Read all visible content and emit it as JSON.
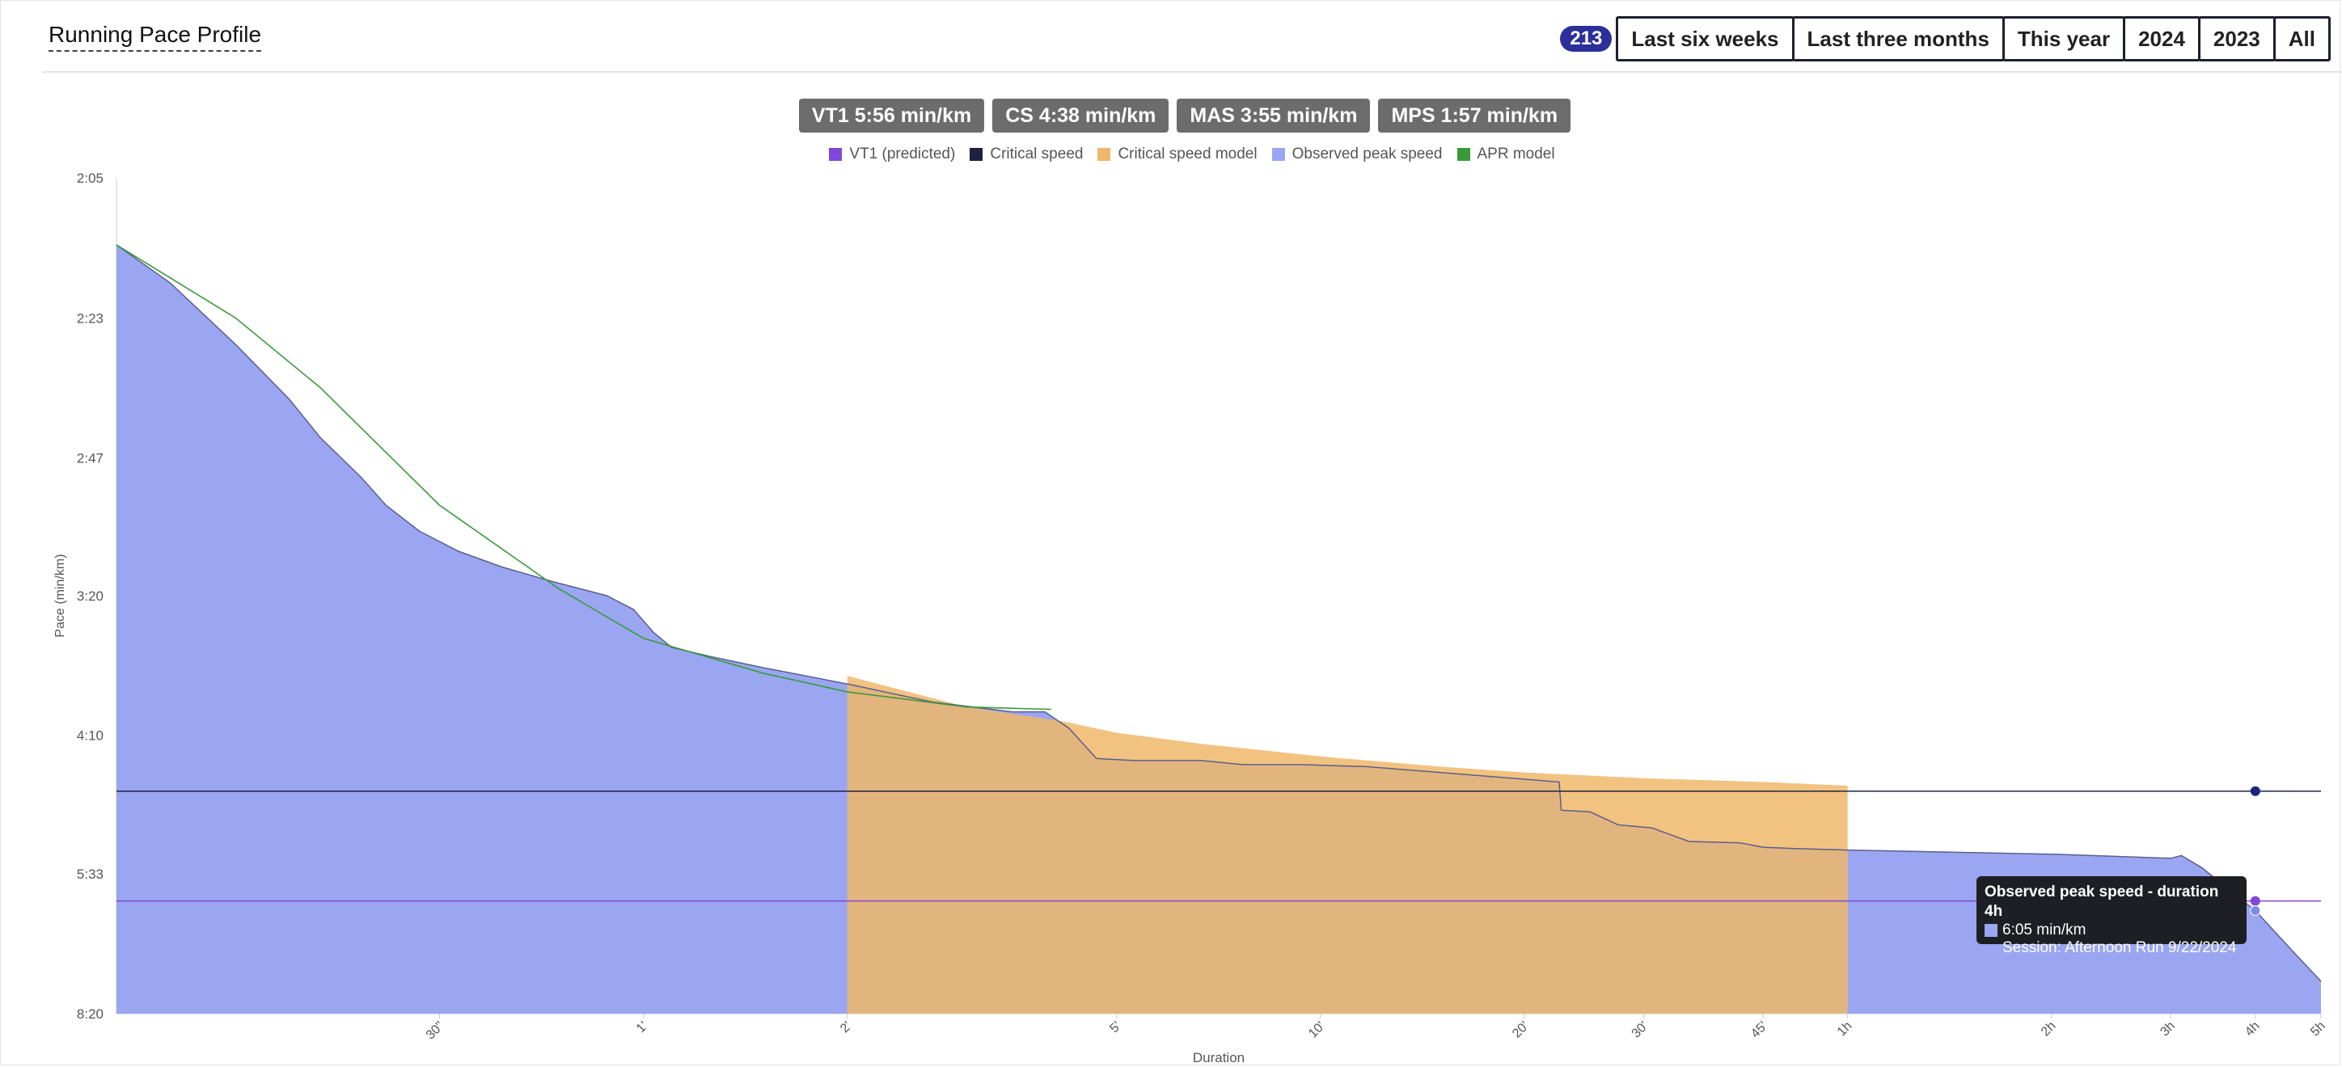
{
  "header": {
    "title": "Running Pace Profile",
    "count_badge": "213",
    "ranges": [
      "Last six weeks",
      "Last three months",
      "This year",
      "2024",
      "2023",
      "All"
    ]
  },
  "metrics": [
    {
      "label": "VT1 5:56 min/km"
    },
    {
      "label": "CS 4:38 min/km"
    },
    {
      "label": "MAS 3:55 min/km"
    },
    {
      "label": "MPS 1:57 min/km"
    }
  ],
  "colors": {
    "vt1": "#7f48d8",
    "critical_speed": "#1f2140",
    "cs_model": "#f0b76a",
    "observed": "#9aa6f2",
    "apr": "#3a9a3a"
  },
  "chart_data": {
    "type": "area",
    "xlabel": "Duration",
    "ylabel": "Pace (min/km)",
    "x_scale": "log",
    "y_scale": "reciprocal (speed)",
    "x_ticks": [
      {
        "label": "30\"",
        "seconds": 30
      },
      {
        "label": "1'",
        "seconds": 60
      },
      {
        "label": "2'",
        "seconds": 120
      },
      {
        "label": "5'",
        "seconds": 300
      },
      {
        "label": "10'",
        "seconds": 600
      },
      {
        "label": "20'",
        "seconds": 1200
      },
      {
        "label": "30'",
        "seconds": 1800
      },
      {
        "label": "45'",
        "seconds": 2700
      },
      {
        "label": "1h",
        "seconds": 3600
      },
      {
        "label": "2h",
        "seconds": 7200
      },
      {
        "label": "3h",
        "seconds": 10800
      },
      {
        "label": "4h",
        "seconds": 14400
      },
      {
        "label": "5h",
        "seconds": 18000
      }
    ],
    "y_ticks": [
      "2:05",
      "2:23",
      "2:47",
      "3:20",
      "4:10",
      "5:33",
      "8:20"
    ],
    "y_range_speed_kmh": [
      7.2,
      28.8
    ],
    "x_range_seconds": [
      10,
      18000
    ],
    "legend": [
      "VT1 (predicted)",
      "Critical speed",
      "Critical speed model",
      "Observed peak speed",
      "APR model"
    ],
    "series": [
      {
        "name": "Observed peak speed",
        "points": [
          [
            10,
            "2:13"
          ],
          [
            12,
            "2:18"
          ],
          [
            15,
            "2:27"
          ],
          [
            18,
            "2:36"
          ],
          [
            20,
            "2:43"
          ],
          [
            23,
            "2:51"
          ],
          [
            25,
            "2:57"
          ],
          [
            28,
            "3:03"
          ],
          [
            32,
            "3:08"
          ],
          [
            37,
            "3:12"
          ],
          [
            44,
            "3:16"
          ],
          [
            53,
            "3:20"
          ],
          [
            58,
            "3:24"
          ],
          [
            62,
            "3:31"
          ],
          [
            66,
            "3:36"
          ],
          [
            75,
            "3:39"
          ],
          [
            90,
            "3:43"
          ],
          [
            120,
            "3:49"
          ],
          [
            160,
            "3:56"
          ],
          [
            210,
            "4:00"
          ],
          [
            235,
            "4:00"
          ],
          [
            255,
            "4:07"
          ],
          [
            280,
            "4:21"
          ],
          [
            320,
            "4:22"
          ],
          [
            400,
            "4:22"
          ],
          [
            460,
            "4:24"
          ],
          [
            560,
            "4:24"
          ],
          [
            700,
            "4:25"
          ],
          [
            900,
            "4:28"
          ],
          [
            1150,
            "4:31"
          ],
          [
            1350,
            "4:33"
          ],
          [
            1360,
            "4:49"
          ],
          [
            1500,
            "4:50"
          ],
          [
            1650,
            "4:58"
          ],
          [
            1850,
            "5:00"
          ],
          [
            2100,
            "5:09"
          ],
          [
            2500,
            "5:10"
          ],
          [
            2700,
            "5:13"
          ],
          [
            3000,
            "5:14"
          ],
          [
            3600,
            "5:15"
          ],
          [
            7200,
            "5:18"
          ],
          [
            10800,
            "5:21"
          ],
          [
            11200,
            "5:19"
          ],
          [
            12000,
            "5:28"
          ],
          [
            14400,
            "6:05"
          ],
          [
            16500,
            "6:52"
          ],
          [
            18000,
            "7:28"
          ]
        ]
      },
      {
        "name": "Critical speed model",
        "points": [
          [
            120,
            "3:46"
          ],
          [
            180,
            "3:58"
          ],
          [
            250,
            "4:04"
          ],
          [
            300,
            "4:09"
          ],
          [
            400,
            "4:14"
          ],
          [
            600,
            "4:20"
          ],
          [
            900,
            "4:25"
          ],
          [
            1200,
            "4:28"
          ],
          [
            1800,
            "4:31"
          ],
          [
            2700,
            "4:33"
          ],
          [
            3600,
            "4:35"
          ]
        ]
      },
      {
        "name": "APR model",
        "points": [
          [
            10,
            "2:13"
          ],
          [
            15,
            "2:23"
          ],
          [
            20,
            "2:34"
          ],
          [
            30,
            "2:57"
          ],
          [
            45,
            "3:18"
          ],
          [
            60,
            "3:33"
          ],
          [
            90,
            "3:45"
          ],
          [
            120,
            "3:52"
          ],
          [
            180,
            "3:58"
          ],
          [
            240,
            "3:59"
          ]
        ]
      }
    ],
    "critical_speed": {
      "pace": "4:38"
    },
    "vt1": {
      "pace": "5:56"
    },
    "tooltip": {
      "title": "Observed peak speed - duration 4h",
      "value": "6:05 min/km",
      "session": "Session: Afternoon Run 9/22/2024"
    }
  }
}
